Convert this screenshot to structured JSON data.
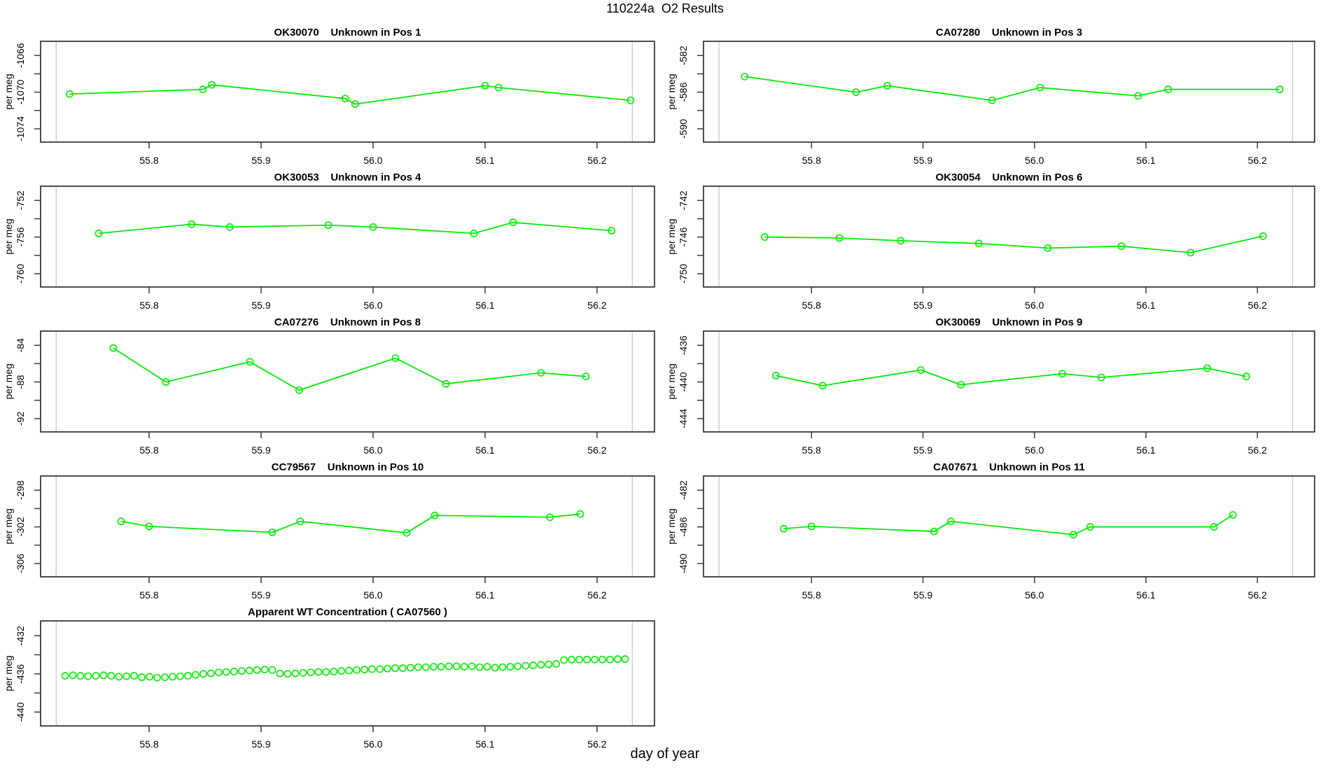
{
  "figure": {
    "title": "110224a  O2 Results",
    "xlabel": "day of year",
    "ylabel": "per meg"
  },
  "axis": {
    "x_ticks": [
      55.8,
      55.9,
      56.0,
      56.1,
      56.2
    ],
    "xlim": [
      55.7031,
      56.2513
    ],
    "run_marker_lines": [
      55.717,
      56.2315
    ],
    "grid": "off",
    "y_label_rotation": -90
  },
  "colors": {
    "series": "#00EE00",
    "marker_line": "#CCCCCC",
    "frame": "#3A3A3A",
    "text": "#000000"
  },
  "chart_data": [
    {
      "type": "line",
      "title_parts": [
        "OK30070",
        "Unknown in Pos 1"
      ],
      "y_ticks": [
        -1074,
        -1070,
        -1066
      ],
      "ylim": [
        -1075.45,
        -1064.45
      ],
      "points": [
        [
          55.729,
          -1070.2
        ],
        [
          55.848,
          -1069.7
        ],
        [
          55.856,
          -1069.2
        ],
        [
          55.975,
          -1070.7
        ],
        [
          55.984,
          -1071.3
        ],
        [
          56.1,
          -1069.3
        ],
        [
          56.112,
          -1069.5
        ],
        [
          56.23,
          -1070.9
        ]
      ]
    },
    {
      "type": "line",
      "title_parts": [
        "CA07280",
        "Unknown in Pos 3"
      ],
      "y_ticks": [
        -590,
        -586,
        -582
      ],
      "ylim": [
        -591.45,
        -580.45
      ],
      "points": [
        [
          55.74,
          -584.3
        ],
        [
          55.84,
          -586.0
        ],
        [
          55.868,
          -585.3
        ],
        [
          55.962,
          -586.9
        ],
        [
          56.005,
          -585.5
        ],
        [
          56.093,
          -586.4
        ],
        [
          56.12,
          -585.7
        ],
        [
          56.22,
          -585.7
        ]
      ]
    },
    {
      "type": "line",
      "title_parts": [
        "OK30053",
        "Unknown in Pos 4"
      ],
      "y_ticks": [
        -760,
        -756,
        -752
      ],
      "ylim": [
        -761.45,
        -750.45
      ],
      "points": [
        [
          55.755,
          -755.6
        ],
        [
          55.838,
          -754.6
        ],
        [
          55.872,
          -754.9
        ],
        [
          55.96,
          -754.7
        ],
        [
          56.0,
          -754.9
        ],
        [
          56.09,
          -755.6
        ],
        [
          56.125,
          -754.4
        ],
        [
          56.213,
          -755.3
        ]
      ]
    },
    {
      "type": "line",
      "title_parts": [
        "OK30054",
        "Unknown in Pos 6"
      ],
      "y_ticks": [
        -750,
        -746,
        -742
      ],
      "ylim": [
        -751.45,
        -740.45
      ],
      "points": [
        [
          55.758,
          -746.0
        ],
        [
          55.825,
          -746.1
        ],
        [
          55.88,
          -746.4
        ],
        [
          55.95,
          -746.7
        ],
        [
          56.012,
          -747.2
        ],
        [
          56.078,
          -747.0
        ],
        [
          56.14,
          -747.7
        ],
        [
          56.205,
          -745.9
        ]
      ]
    },
    {
      "type": "line",
      "title_parts": [
        "CA07276",
        "Unknown in Pos 8"
      ],
      "y_ticks": [
        -92,
        -88,
        -84
      ],
      "ylim": [
        -93.45,
        -82.45
      ],
      "points": [
        [
          55.768,
          -84.3
        ],
        [
          55.815,
          -88.0
        ],
        [
          55.89,
          -85.8
        ],
        [
          55.934,
          -88.9
        ],
        [
          56.02,
          -85.4
        ],
        [
          56.065,
          -88.2
        ],
        [
          56.15,
          -87.0
        ],
        [
          56.19,
          -87.4
        ]
      ]
    },
    {
      "type": "line",
      "title_parts": [
        "OK30069",
        "Unknown in Pos 9"
      ],
      "y_ticks": [
        -444,
        -440,
        -436
      ],
      "ylim": [
        -445.45,
        -434.45
      ],
      "points": [
        [
          55.768,
          -439.3
        ],
        [
          55.81,
          -440.4
        ],
        [
          55.898,
          -438.7
        ],
        [
          55.934,
          -440.3
        ],
        [
          56.025,
          -439.1
        ],
        [
          56.06,
          -439.5
        ],
        [
          56.155,
          -438.5
        ],
        [
          56.19,
          -439.4
        ]
      ]
    },
    {
      "type": "line",
      "title_parts": [
        "CC79567",
        "Unknown in Pos 10"
      ],
      "y_ticks": [
        -306,
        -302,
        -298
      ],
      "ylim": [
        -307.45,
        -296.45
      ],
      "points": [
        [
          55.775,
          -301.4
        ],
        [
          55.8,
          -301.95
        ],
        [
          55.91,
          -302.6
        ],
        [
          55.935,
          -301.4
        ],
        [
          56.03,
          -302.65
        ],
        [
          56.055,
          -300.75
        ],
        [
          56.158,
          -300.95
        ],
        [
          56.185,
          -300.6
        ]
      ]
    },
    {
      "type": "line",
      "title_parts": [
        "CA07671",
        "Unknown in Pos 11"
      ],
      "y_ticks": [
        -490,
        -486,
        -482
      ],
      "ylim": [
        -491.45,
        -480.45
      ],
      "points": [
        [
          55.775,
          -486.2
        ],
        [
          55.8,
          -485.95
        ],
        [
          55.91,
          -486.5
        ],
        [
          55.925,
          -485.4
        ],
        [
          56.035,
          -486.85
        ],
        [
          56.05,
          -486.0
        ],
        [
          56.161,
          -486.0
        ],
        [
          56.178,
          -484.7
        ]
      ]
    },
    {
      "type": "scatter",
      "title_parts": [
        "Apparent WT Concentration ( CA07560 )"
      ],
      "y_ticks": [
        -440,
        -436,
        -432
      ],
      "ylim": [
        -441.45,
        -430.45
      ],
      "points": [
        [
          55.725,
          -436.2
        ],
        [
          55.7319,
          -436.15
        ],
        [
          55.7387,
          -436.2
        ],
        [
          55.7456,
          -436.25
        ],
        [
          55.7524,
          -436.2
        ],
        [
          55.7593,
          -436.15
        ],
        [
          55.7661,
          -436.2
        ],
        [
          55.773,
          -436.3
        ],
        [
          55.7798,
          -436.25
        ],
        [
          55.7867,
          -436.2
        ],
        [
          55.7935,
          -436.35
        ],
        [
          55.8004,
          -436.3
        ],
        [
          55.8072,
          -436.4
        ],
        [
          55.8141,
          -436.35
        ],
        [
          55.8209,
          -436.3
        ],
        [
          55.8278,
          -436.25
        ],
        [
          55.8347,
          -436.2
        ],
        [
          55.8415,
          -436.1
        ],
        [
          55.8484,
          -436.0
        ],
        [
          55.8552,
          -435.95
        ],
        [
          55.8621,
          -435.85
        ],
        [
          55.8689,
          -435.8
        ],
        [
          55.8758,
          -435.75
        ],
        [
          55.8826,
          -435.7
        ],
        [
          55.8895,
          -435.65
        ],
        [
          55.8963,
          -435.6
        ],
        [
          55.9032,
          -435.55
        ],
        [
          55.91,
          -435.6
        ],
        [
          55.9169,
          -435.95
        ],
        [
          55.9237,
          -436.0
        ],
        [
          55.9306,
          -435.95
        ],
        [
          55.9375,
          -435.9
        ],
        [
          55.9443,
          -435.85
        ],
        [
          55.9512,
          -435.8
        ],
        [
          55.958,
          -435.8
        ],
        [
          55.9649,
          -435.75
        ],
        [
          55.9717,
          -435.7
        ],
        [
          55.9786,
          -435.65
        ],
        [
          55.9854,
          -435.6
        ],
        [
          55.9923,
          -435.55
        ],
        [
          55.9991,
          -435.5
        ],
        [
          56.006,
          -435.5
        ],
        [
          56.0128,
          -435.45
        ],
        [
          56.0197,
          -435.4
        ],
        [
          56.0265,
          -435.4
        ],
        [
          56.0334,
          -435.35
        ],
        [
          56.0403,
          -435.3
        ],
        [
          56.0471,
          -435.3
        ],
        [
          56.054,
          -435.25
        ],
        [
          56.0608,
          -435.25
        ],
        [
          56.0677,
          -435.2
        ],
        [
          56.0745,
          -435.2
        ],
        [
          56.0814,
          -435.25
        ],
        [
          56.0882,
          -435.2
        ],
        [
          56.0951,
          -435.3
        ],
        [
          56.1019,
          -435.25
        ],
        [
          56.1088,
          -435.35
        ],
        [
          56.1156,
          -435.3
        ],
        [
          56.1225,
          -435.25
        ],
        [
          56.1293,
          -435.2
        ],
        [
          56.1362,
          -435.15
        ],
        [
          56.143,
          -435.1
        ],
        [
          56.1499,
          -435.05
        ],
        [
          56.1568,
          -435.0
        ],
        [
          56.1636,
          -434.95
        ],
        [
          56.1705,
          -434.55
        ],
        [
          56.1773,
          -434.5
        ],
        [
          56.1842,
          -434.5
        ],
        [
          56.191,
          -434.5
        ],
        [
          56.1979,
          -434.5
        ],
        [
          56.2047,
          -434.5
        ],
        [
          56.2116,
          -434.5
        ],
        [
          56.2184,
          -434.45
        ],
        [
          56.225,
          -434.45
        ]
      ]
    }
  ]
}
